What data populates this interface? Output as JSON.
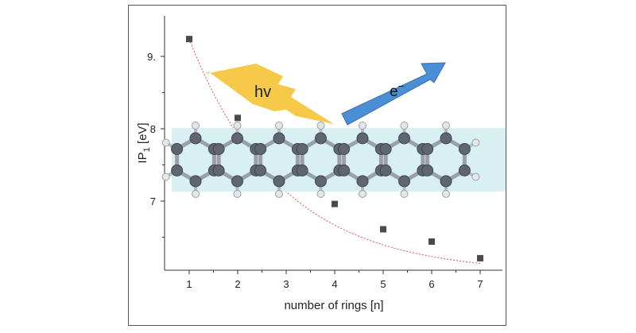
{
  "chart_data": {
    "type": "scatter",
    "x": [
      1,
      2,
      3,
      4,
      5,
      6,
      7
    ],
    "y": [
      9.24,
      8.15,
      null,
      6.96,
      6.61,
      6.44,
      6.21
    ],
    "xlabel": "number of rings [n]",
    "ylabel_main": "IP",
    "ylabel_sub": "1",
    "ylabel_unit": " [eV]",
    "x_ticks": [
      "1",
      "2",
      "3",
      "4",
      "5",
      "6",
      "7"
    ],
    "y_ticks": [
      "9.",
      "8",
      "7"
    ],
    "y_tick_values": [
      9,
      8,
      7
    ],
    "xlim": [
      0.5,
      7.5
    ],
    "ylim": [
      6.0,
      9.5
    ],
    "fit_curve": true,
    "fit_color": "#e05050",
    "marker_color": "#4a4a4a",
    "grid": false
  },
  "overlays": {
    "photon_label": "hv",
    "electron_label": "e",
    "electron_sup": "−",
    "lightning_color": "#f7c948",
    "arrow_color": "#4a8fd6",
    "band_color": "#d9f0f2",
    "molecule_rings": 7
  }
}
